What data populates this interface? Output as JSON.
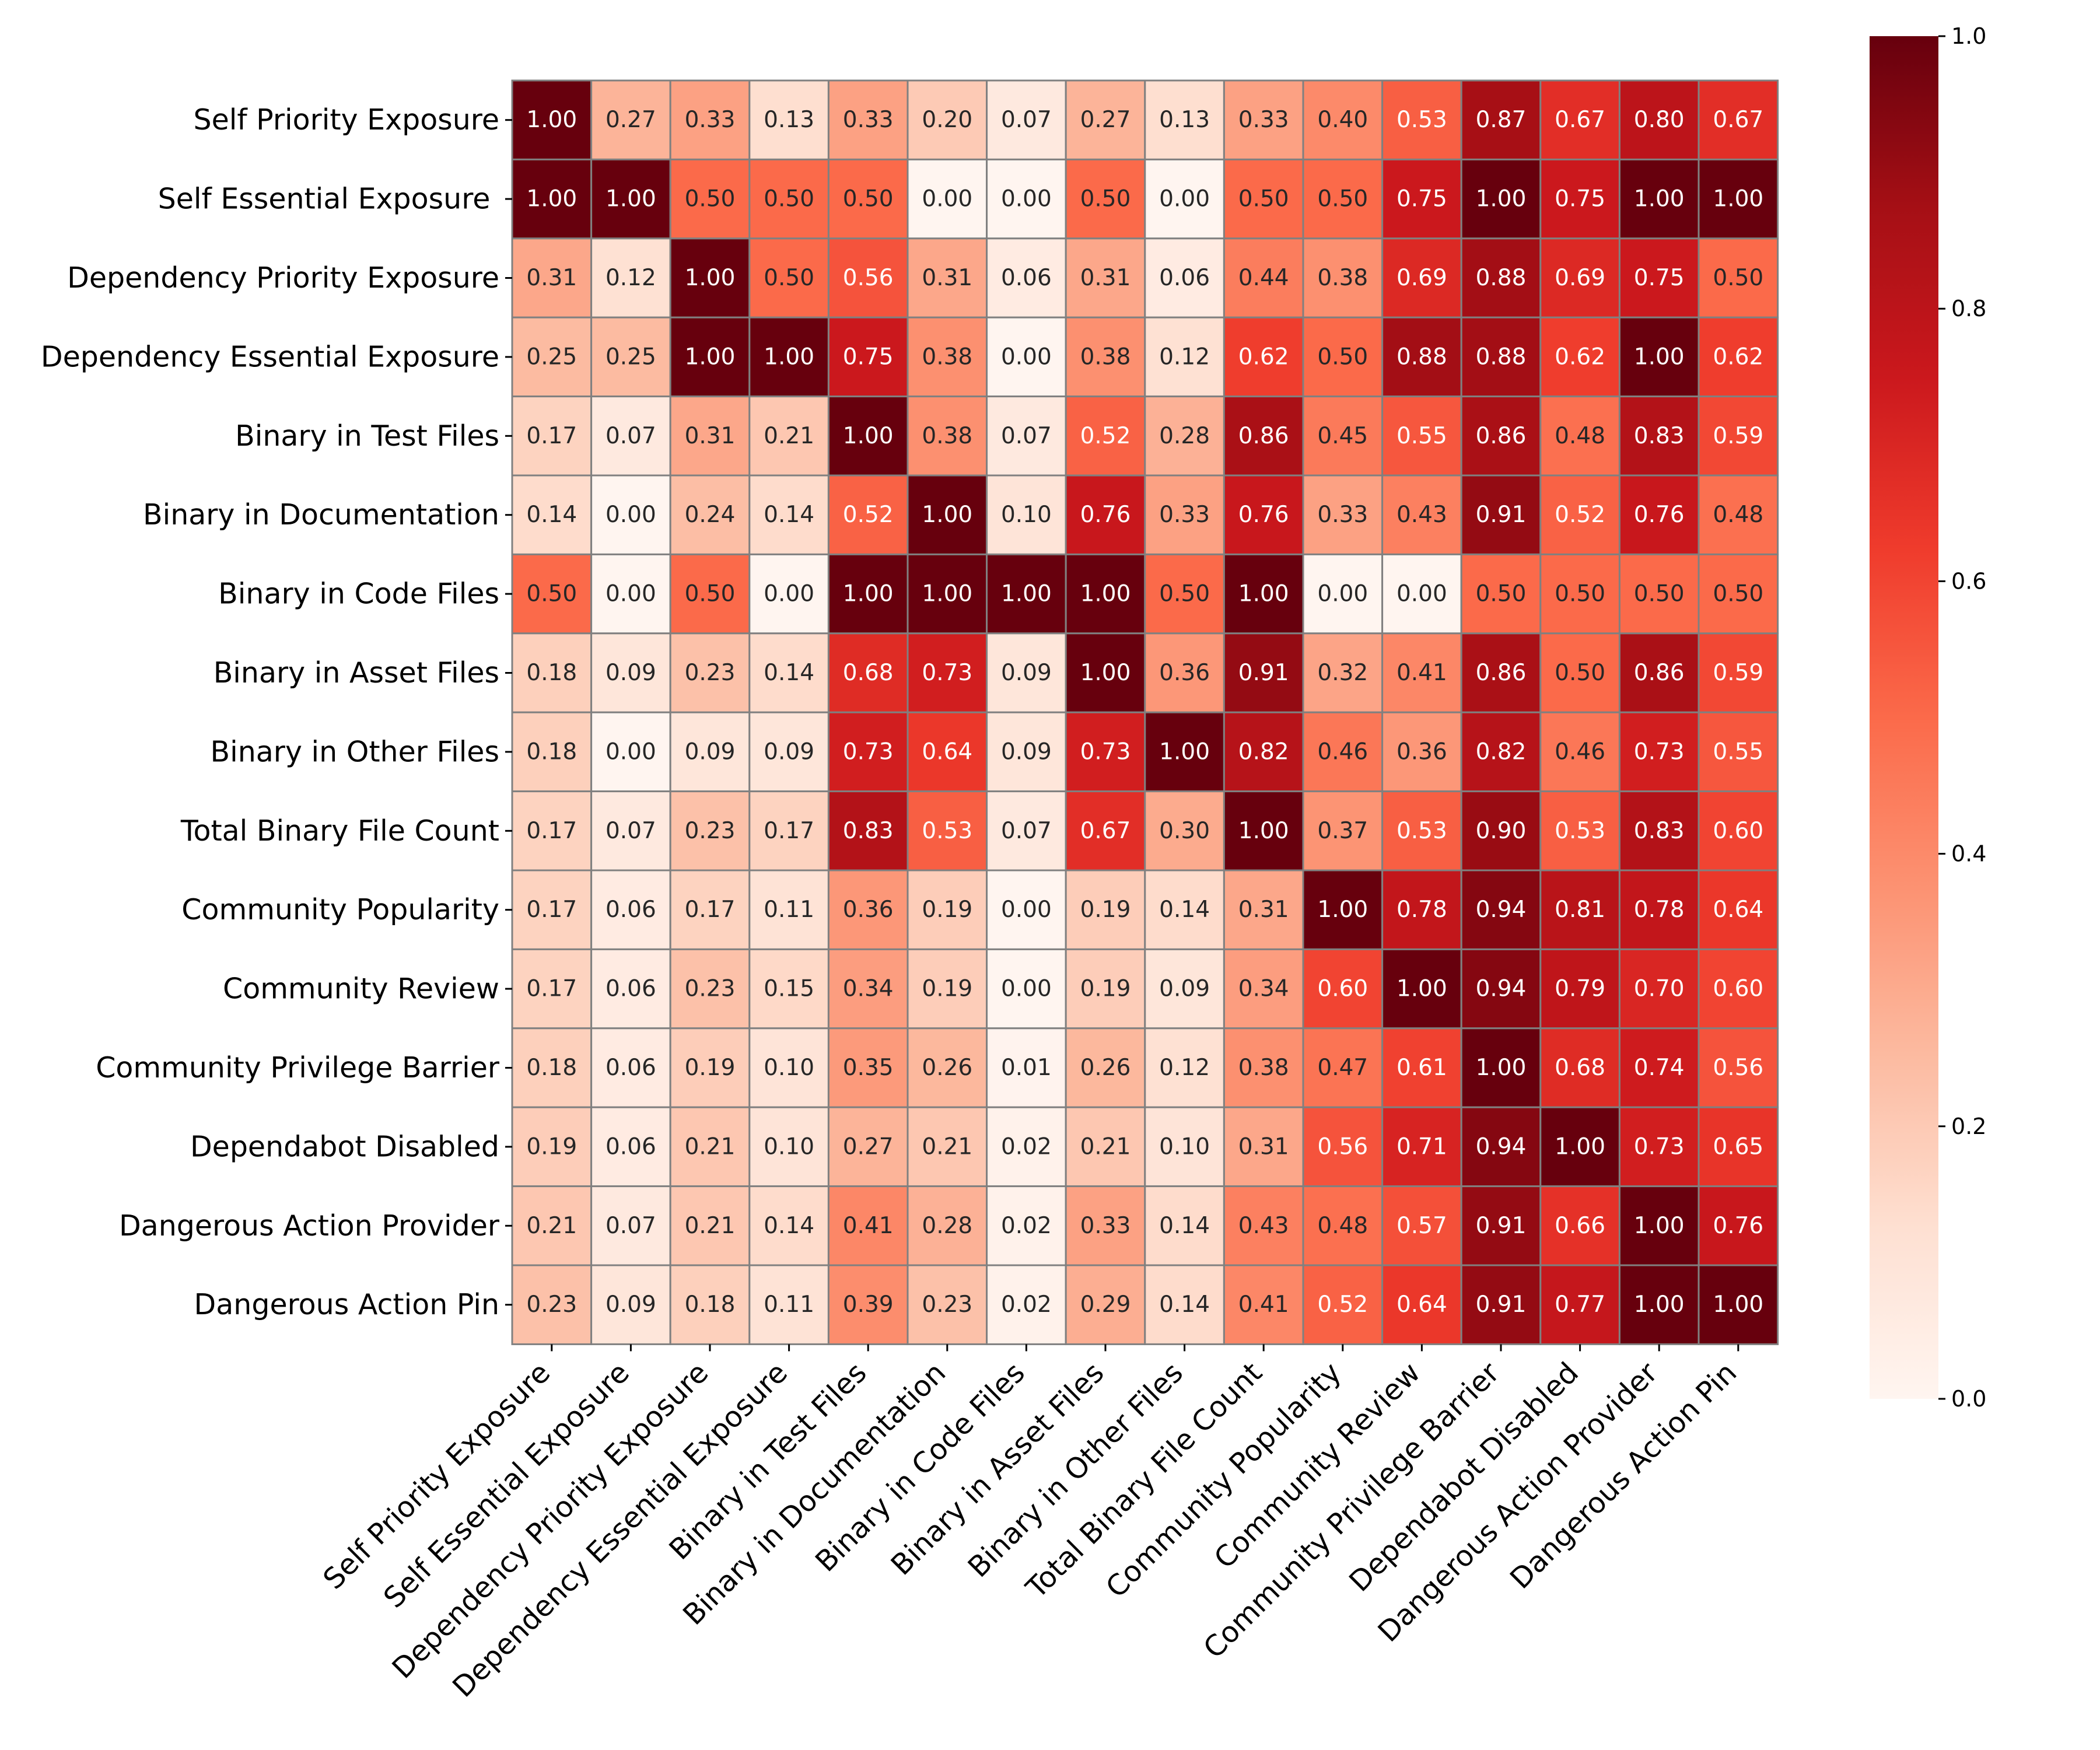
{
  "chart_data": {
    "type": "heatmap",
    "title": "",
    "xlabel": "",
    "ylabel": "",
    "colormap": "Reds",
    "vmin": 0.0,
    "vmax": 1.0,
    "row_labels": [
      "Self Priority Exposure",
      "Self Essential Exposure ",
      "Dependency Priority Exposure",
      "Dependency Essential Exposure",
      "Binary in Test Files",
      "Binary in Documentation",
      "Binary in Code Files",
      "Binary in Asset Files",
      "Binary in Other Files",
      "Total Binary File Count",
      "Community Popularity",
      "Community Review",
      "Community Privilege Barrier",
      "Dependabot Disabled",
      "Dangerous Action Provider",
      "Dangerous Action Pin"
    ],
    "col_labels": [
      "Self Priority Exposure",
      "Self Essential Exposure",
      "Dependency Priority Exposure",
      "Dependency Essential Exposure",
      "Binary in Test Files",
      "Binary in Documentation",
      "Binary in Code Files",
      "Binary in Asset Files",
      "Binary in Other Files",
      "Total Binary File Count",
      "Community Popularity",
      "Community Review",
      "Community Privilege Barrier",
      "Dependabot Disabled",
      "Dangerous Action Provider",
      "Dangerous Action Pin"
    ],
    "values": [
      [
        1.0,
        0.27,
        0.33,
        0.13,
        0.33,
        0.2,
        0.07,
        0.27,
        0.13,
        0.33,
        0.4,
        0.53,
        0.87,
        0.67,
        0.8,
        0.67
      ],
      [
        1.0,
        1.0,
        0.5,
        0.5,
        0.5,
        0.0,
        0.0,
        0.5,
        0.0,
        0.5,
        0.5,
        0.75,
        1.0,
        0.75,
        1.0,
        1.0
      ],
      [
        0.31,
        0.12,
        1.0,
        0.5,
        0.56,
        0.31,
        0.06,
        0.31,
        0.06,
        0.44,
        0.38,
        0.69,
        0.88,
        0.69,
        0.75,
        0.5
      ],
      [
        0.25,
        0.25,
        1.0,
        1.0,
        0.75,
        0.38,
        0.0,
        0.38,
        0.12,
        0.62,
        0.5,
        0.88,
        0.88,
        0.62,
        1.0,
        0.62
      ],
      [
        0.17,
        0.07,
        0.31,
        0.21,
        1.0,
        0.38,
        0.07,
        0.52,
        0.28,
        0.86,
        0.45,
        0.55,
        0.86,
        0.48,
        0.83,
        0.59
      ],
      [
        0.14,
        0.0,
        0.24,
        0.14,
        0.52,
        1.0,
        0.1,
        0.76,
        0.33,
        0.76,
        0.33,
        0.43,
        0.91,
        0.52,
        0.76,
        0.48
      ],
      [
        0.5,
        0.0,
        0.5,
        0.0,
        1.0,
        1.0,
        1.0,
        1.0,
        0.5,
        1.0,
        0.0,
        0.0,
        0.5,
        0.5,
        0.5,
        0.5
      ],
      [
        0.18,
        0.09,
        0.23,
        0.14,
        0.68,
        0.73,
        0.09,
        1.0,
        0.36,
        0.91,
        0.32,
        0.41,
        0.86,
        0.5,
        0.86,
        0.59
      ],
      [
        0.18,
        0.0,
        0.09,
        0.09,
        0.73,
        0.64,
        0.09,
        0.73,
        1.0,
        0.82,
        0.46,
        0.36,
        0.82,
        0.46,
        0.73,
        0.55
      ],
      [
        0.17,
        0.07,
        0.23,
        0.17,
        0.83,
        0.53,
        0.07,
        0.67,
        0.3,
        1.0,
        0.37,
        0.53,
        0.9,
        0.53,
        0.83,
        0.6
      ],
      [
        0.17,
        0.06,
        0.17,
        0.11,
        0.36,
        0.19,
        0.0,
        0.19,
        0.14,
        0.31,
        1.0,
        0.78,
        0.94,
        0.81,
        0.78,
        0.64
      ],
      [
        0.17,
        0.06,
        0.23,
        0.15,
        0.34,
        0.19,
        0.0,
        0.19,
        0.09,
        0.34,
        0.6,
        1.0,
        0.94,
        0.79,
        0.7,
        0.6
      ],
      [
        0.18,
        0.06,
        0.19,
        0.1,
        0.35,
        0.26,
        0.01,
        0.26,
        0.12,
        0.38,
        0.47,
        0.61,
        1.0,
        0.68,
        0.74,
        0.56
      ],
      [
        0.19,
        0.06,
        0.21,
        0.1,
        0.27,
        0.21,
        0.02,
        0.21,
        0.1,
        0.31,
        0.56,
        0.71,
        0.94,
        1.0,
        0.73,
        0.65
      ],
      [
        0.21,
        0.07,
        0.21,
        0.14,
        0.41,
        0.28,
        0.02,
        0.33,
        0.14,
        0.43,
        0.48,
        0.57,
        0.91,
        0.66,
        1.0,
        0.76
      ],
      [
        0.23,
        0.09,
        0.18,
        0.11,
        0.39,
        0.23,
        0.02,
        0.29,
        0.14,
        0.41,
        0.52,
        0.64,
        0.91,
        0.77,
        1.0,
        1.0
      ]
    ],
    "colorbar": {
      "ticks": [
        0.0,
        0.2,
        0.4,
        0.6,
        0.8,
        1.0
      ],
      "tick_labels": [
        "0.0",
        "0.2",
        "0.4",
        "0.6",
        "0.8",
        "1.0"
      ]
    },
    "value_format": "2 decimals",
    "grid": false,
    "legend": "colorbar-right"
  }
}
